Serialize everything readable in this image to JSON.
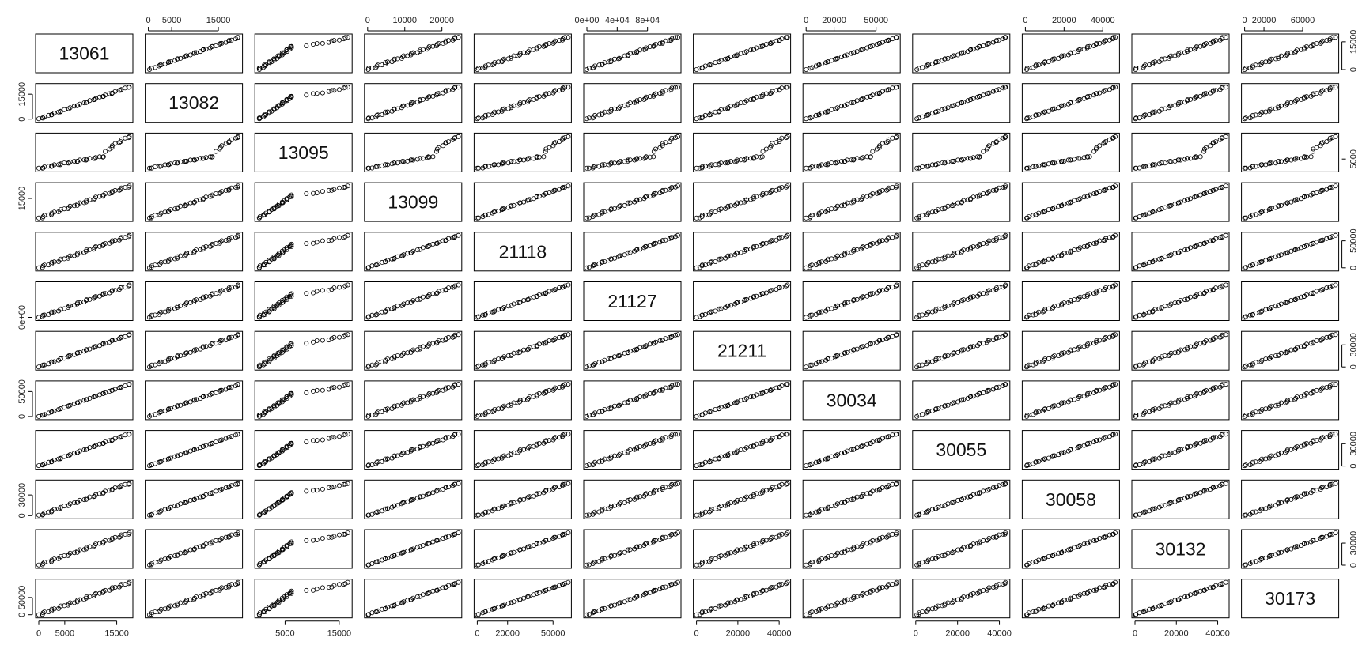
{
  "chart_data": {
    "type": "scatter",
    "variables": [
      "13061",
      "13082",
      "13095",
      "13099",
      "21118",
      "21127",
      "21211",
      "30034",
      "30055",
      "30058",
      "30132",
      "30173"
    ],
    "ranges": [
      [
        0,
        17500
      ],
      [
        0,
        19500
      ],
      [
        0,
        16800
      ],
      [
        0,
        24500
      ],
      [
        0,
        60000
      ],
      [
        0,
        120000
      ],
      [
        0,
        44000
      ],
      [
        0,
        65000
      ],
      [
        0,
        43500
      ],
      [
        0,
        47000
      ],
      [
        0,
        44000
      ],
      [
        0,
        94000
      ]
    ],
    "top_axes": [
      {
        "col": 1,
        "ticks": [
          0,
          5000,
          15000
        ],
        "labels": [
          "0",
          "5000",
          "15000"
        ]
      },
      {
        "col": 3,
        "ticks": [
          0,
          10000,
          20000
        ],
        "labels": [
          "0",
          "10000",
          "20000"
        ]
      },
      {
        "col": 5,
        "ticks": [
          0,
          40000,
          80000
        ],
        "labels": [
          "0e+00",
          "4e+04",
          "8e+04"
        ]
      },
      {
        "col": 7,
        "ticks": [
          0,
          20000,
          50000
        ],
        "labels": [
          "0",
          "20000",
          "50000"
        ]
      },
      {
        "col": 9,
        "ticks": [
          0,
          20000,
          40000
        ],
        "labels": [
          "0",
          "20000",
          "40000"
        ]
      },
      {
        "col": 11,
        "ticks": [
          0,
          20000,
          60000
        ],
        "labels": [
          "0",
          "20000",
          "60000"
        ]
      }
    ],
    "bottom_axes": [
      {
        "col": 0,
        "ticks": [
          0,
          5000,
          15000
        ],
        "labels": [
          "0",
          "5000",
          "15000"
        ]
      },
      {
        "col": 2,
        "ticks": [
          5000,
          15000
        ],
        "labels": [
          "5000",
          "15000"
        ]
      },
      {
        "col": 4,
        "ticks": [
          0,
          20000,
          50000
        ],
        "labels": [
          "0",
          "20000",
          "50000"
        ]
      },
      {
        "col": 6,
        "ticks": [
          0,
          20000,
          40000
        ],
        "labels": [
          "0",
          "20000",
          "40000"
        ]
      },
      {
        "col": 8,
        "ticks": [
          0,
          20000,
          40000
        ],
        "labels": [
          "0",
          "20000",
          "40000"
        ]
      },
      {
        "col": 10,
        "ticks": [
          0,
          20000,
          40000
        ],
        "labels": [
          "0",
          "20000",
          "40000"
        ]
      }
    ],
    "left_axes": [
      {
        "row": 1,
        "ticks": [
          0,
          15000
        ],
        "labels": [
          "0",
          "15000"
        ]
      },
      {
        "row": 3,
        "ticks": [
          15000
        ],
        "labels": [
          "15000"
        ]
      },
      {
        "row": 5,
        "ticks": [
          0
        ],
        "labels": [
          "0e+00"
        ]
      },
      {
        "row": 7,
        "ticks": [
          0,
          50000
        ],
        "labels": [
          "0",
          "50000"
        ]
      },
      {
        "row": 9,
        "ticks": [
          0,
          30000
        ],
        "labels": [
          "0",
          "30000"
        ]
      },
      {
        "row": 11,
        "ticks": [
          0,
          50000
        ],
        "labels": [
          "0",
          "50000"
        ]
      }
    ],
    "right_axes": [
      {
        "row": 0,
        "ticks": [
          0,
          15000
        ],
        "labels": [
          "0",
          "15000"
        ]
      },
      {
        "row": 2,
        "ticks": [
          5000
        ],
        "labels": [
          "5000"
        ]
      },
      {
        "row": 4,
        "ticks": [
          0,
          50000
        ],
        "labels": [
          "0",
          "50000"
        ]
      },
      {
        "row": 6,
        "ticks": [
          0,
          30000
        ],
        "labels": [
          "0",
          "30000"
        ]
      },
      {
        "row": 8,
        "ticks": [
          0,
          30000
        ],
        "labels": [
          "0",
          "30000"
        ]
      },
      {
        "row": 10,
        "ticks": [
          0,
          30000
        ],
        "labels": [
          "0",
          "30000"
        ]
      }
    ],
    "points_per_panel": 40,
    "marker": "open-circle",
    "grid": false,
    "legend": "none",
    "title": "",
    "xlabel": "",
    "ylabel": ""
  },
  "colors": {
    "marker": "#000000",
    "frame": "#000000",
    "background": "#ffffff"
  }
}
